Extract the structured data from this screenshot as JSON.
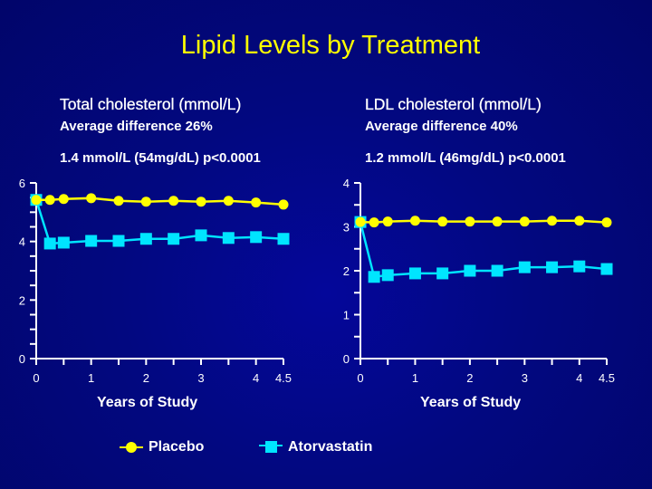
{
  "title": "Lipid Levels by Treatment",
  "colors": {
    "background": "#020880",
    "title": "#ffff00",
    "placebo": "#ffff00",
    "atorvastatin": "#00e5ff",
    "axis": "#ffffff"
  },
  "panels": {
    "left": {
      "heading": "Total cholesterol (mmol/L)",
      "avg_diff": "Average difference 26%",
      "stat": "1.4 mmol/L (54mg/dL) p<0.0001"
    },
    "right": {
      "heading": "LDL cholesterol (mmol/L)",
      "avg_diff": "Average difference 40%",
      "stat": "1.2 mmol/L (46mg/dL) p<0.0001"
    }
  },
  "legend": {
    "placebo": "Placebo",
    "atorvastatin": "Atorvastatin"
  },
  "chart_data": [
    {
      "type": "line",
      "title": "Total cholesterol (mmol/L)",
      "xlabel": "Years of Study",
      "ylabel": "",
      "xlim": [
        0,
        4.5
      ],
      "ylim": [
        0,
        6
      ],
      "x_ticks": [
        0,
        0.5,
        1,
        1.5,
        2,
        2.5,
        3,
        3.5,
        4,
        4.5
      ],
      "x_tick_labels": [
        {
          "value": 0,
          "label": "0"
        },
        {
          "value": 1,
          "label": "1"
        },
        {
          "value": 2,
          "label": "2"
        },
        {
          "value": 3,
          "label": "3"
        },
        {
          "value": 4,
          "label": "4"
        },
        {
          "value": 4.5,
          "label": "4.5"
        }
      ],
      "y_ticks": [
        0,
        0.5,
        1,
        1.5,
        2,
        2.5,
        3,
        3.5,
        4,
        4.5,
        5,
        5.5,
        6
      ],
      "y_tick_labels": [
        {
          "value": 0,
          "label": "0"
        },
        {
          "value": 2,
          "label": "2"
        },
        {
          "value": 4,
          "label": "4"
        },
        {
          "value": 6,
          "label": "6"
        }
      ],
      "grid": false,
      "legend_position": "bottom",
      "series": [
        {
          "name": "Placebo",
          "marker": "circle",
          "x": [
            0,
            0.25,
            0.5,
            1,
            1.5,
            2,
            2.5,
            3,
            3.5,
            4,
            4.5
          ],
          "values": [
            5.42,
            5.42,
            5.45,
            5.48,
            5.39,
            5.36,
            5.39,
            5.36,
            5.39,
            5.33,
            5.26
          ]
        },
        {
          "name": "Atorvastatin",
          "marker": "square",
          "x": [
            0,
            0.25,
            0.5,
            1,
            1.5,
            2,
            2.5,
            3,
            3.5,
            4,
            4.5
          ],
          "values": [
            5.42,
            3.93,
            3.96,
            4.02,
            4.02,
            4.09,
            4.09,
            4.21,
            4.12,
            4.15,
            4.09
          ]
        }
      ]
    },
    {
      "type": "line",
      "title": "LDL cholesterol (mmol/L)",
      "xlabel": "Years of Study",
      "ylabel": "",
      "xlim": [
        0,
        4.5
      ],
      "ylim": [
        0,
        4
      ],
      "x_ticks": [
        0,
        0.5,
        1,
        1.5,
        2,
        2.5,
        3,
        3.5,
        4,
        4.5
      ],
      "x_tick_labels": [
        {
          "value": 0,
          "label": "0"
        },
        {
          "value": 1,
          "label": "1"
        },
        {
          "value": 2,
          "label": "2"
        },
        {
          "value": 3,
          "label": "3"
        },
        {
          "value": 4,
          "label": "4"
        },
        {
          "value": 4.5,
          "label": "4.5"
        }
      ],
      "y_ticks": [
        0,
        0.5,
        1,
        1.5,
        2,
        2.5,
        3,
        3.5,
        4
      ],
      "y_tick_labels": [
        {
          "value": 0,
          "label": "0"
        },
        {
          "value": 1,
          "label": "1"
        },
        {
          "value": 2,
          "label": "2"
        },
        {
          "value": 3,
          "label": "3"
        },
        {
          "value": 4,
          "label": "4"
        }
      ],
      "grid": false,
      "legend_position": "bottom",
      "series": [
        {
          "name": "Placebo",
          "marker": "circle",
          "x": [
            0,
            0.25,
            0.5,
            1,
            1.5,
            2,
            2.5,
            3,
            3.5,
            4,
            4.5
          ],
          "values": [
            3.11,
            3.1,
            3.12,
            3.14,
            3.12,
            3.12,
            3.12,
            3.12,
            3.14,
            3.14,
            3.1
          ]
        },
        {
          "name": "Atorvastatin",
          "marker": "square",
          "x": [
            0,
            0.25,
            0.5,
            1,
            1.5,
            2,
            2.5,
            3,
            3.5,
            4,
            4.5
          ],
          "values": [
            3.11,
            1.86,
            1.9,
            1.94,
            1.94,
            2.0,
            2.0,
            2.08,
            2.08,
            2.1,
            2.04
          ]
        }
      ]
    }
  ]
}
